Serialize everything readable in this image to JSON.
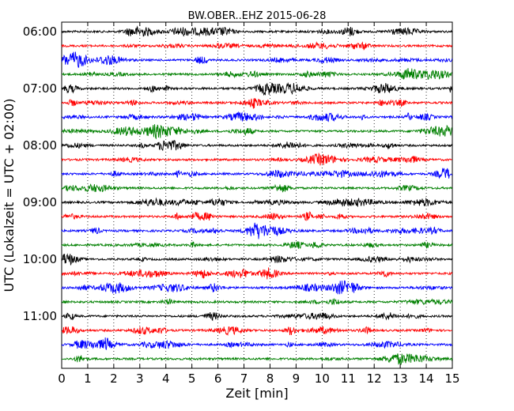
{
  "chart_data": {
    "type": "line",
    "title": "BW.OBER..EHZ 2015-06-28",
    "xlabel": "Zeit  [min]",
    "ylabel": "UTC (Lokalzeit = UTC + 02:00)",
    "xlim": [
      0,
      15
    ],
    "x_ticks": [
      "0",
      "1",
      "2",
      "3",
      "4",
      "5",
      "6",
      "7",
      "8",
      "9",
      "10",
      "11",
      "12",
      "13",
      "14",
      "15"
    ],
    "y_ticks": [
      {
        "label": "06:00",
        "trace_index": 0
      },
      {
        "label": "07:00",
        "trace_index": 4
      },
      {
        "label": "08:00",
        "trace_index": 8
      },
      {
        "label": "09:00",
        "trace_index": 12
      },
      {
        "label": "10:00",
        "trace_index": 16
      },
      {
        "label": "11:00",
        "trace_index": 20
      }
    ],
    "trace_interval_minutes": 15,
    "trace_count": 24,
    "trace_colors": [
      "#000000",
      "#ff0000",
      "#0000ff",
      "#008000"
    ],
    "grid": "vertical-dotted"
  }
}
